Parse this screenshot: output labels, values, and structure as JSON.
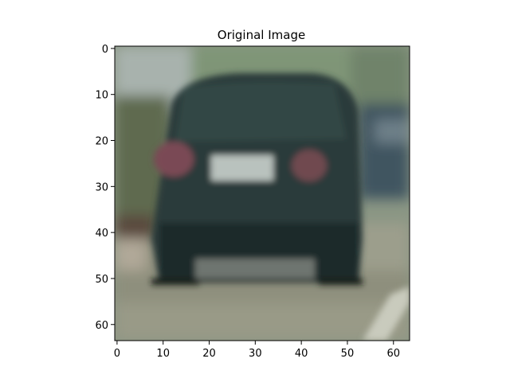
{
  "figure": {
    "title": "Original Image"
  },
  "image": {
    "description_icon": "car-rear-view-photo",
    "x_range": [
      0,
      64
    ],
    "y_range": [
      0,
      64
    ],
    "x_ticks": [
      0,
      10,
      20,
      30,
      40,
      50,
      60
    ],
    "y_ticks": [
      0,
      10,
      20,
      30,
      40,
      50,
      60
    ],
    "colors": {
      "sky": "#9aa89a",
      "foliage": "#7f9577",
      "car_body": "#2b3b3a",
      "car_dark": "#1e2a29",
      "plate": "#b9c2be",
      "tail_light": "#7a4a55",
      "road": "#8e8f7d",
      "road_light": "#a3a592",
      "lane_mark": "#c9cbbd"
    }
  }
}
